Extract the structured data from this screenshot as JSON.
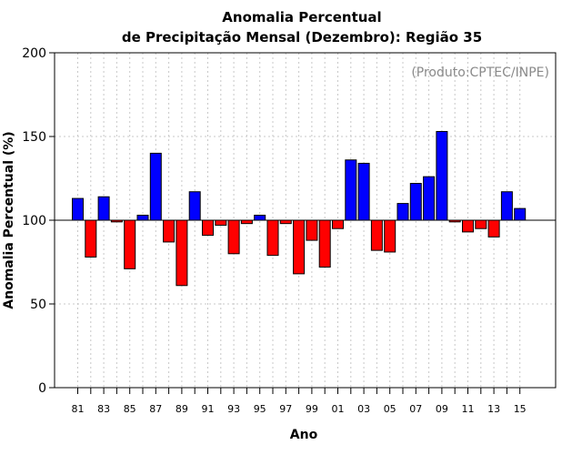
{
  "chart_data": {
    "type": "bar",
    "title_line1": "Anomalia Percentual",
    "title_line2": "de Precipitação Mensal (Dezembro): Região 35",
    "credit": "(Produto:CPTEC/INPE)",
    "xlabel": "Ano",
    "ylabel": "Anomalia Percentual (%)",
    "ylim": [
      0,
      200
    ],
    "yticks": [
      0,
      50,
      100,
      150,
      200
    ],
    "baseline": 100,
    "grid": true,
    "colors": {
      "above": "#0000ff",
      "below": "#ff0000",
      "grid": "#c8c8c8",
      "baseline": "#000000"
    },
    "xtick_labels": [
      "81",
      "83",
      "85",
      "87",
      "89",
      "91",
      "93",
      "95",
      "97",
      "99",
      "01",
      "03",
      "05",
      "07",
      "09",
      "11",
      "13",
      "15"
    ],
    "categories": [
      "1981",
      "1982",
      "1983",
      "1984",
      "1985",
      "1986",
      "1987",
      "1988",
      "1989",
      "1990",
      "1991",
      "1992",
      "1993",
      "1994",
      "1995",
      "1996",
      "1997",
      "1998",
      "1999",
      "2000",
      "2001",
      "2002",
      "2003",
      "2004",
      "2005",
      "2006",
      "2007",
      "2008",
      "2009",
      "2010",
      "2011",
      "2012",
      "2013",
      "2014",
      "2015"
    ],
    "values": [
      113,
      78,
      114,
      99,
      71,
      103,
      140,
      87,
      61,
      117,
      91,
      97,
      80,
      98,
      103,
      79,
      98,
      68,
      88,
      72,
      95,
      136,
      134,
      82,
      81,
      110,
      122,
      126,
      153,
      99,
      93,
      95,
      90,
      117,
      107
    ]
  }
}
